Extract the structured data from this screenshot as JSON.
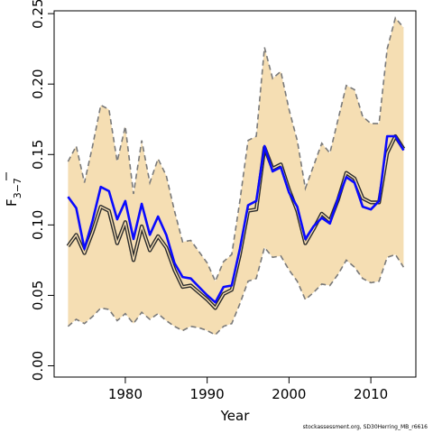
{
  "chart_data": {
    "type": "line",
    "xlabel": "Year",
    "ylabel": "F",
    "ylabel_subscript": "3−7",
    "xlim": [
      1971.3,
      2015.5
    ],
    "ylim": [
      -0.008,
      0.252
    ],
    "x_ticks": [
      1980,
      1990,
      2000,
      2010
    ],
    "y_ticks": [
      0.0,
      0.05,
      0.1,
      0.15,
      0.2,
      0.25
    ],
    "y_tick_labels": [
      "0.00",
      "0.05",
      "0.10",
      "0.15",
      "0.20",
      "0.25"
    ],
    "grid": false,
    "legend": "none",
    "x": [
      1973,
      1974,
      1975,
      1976,
      1977,
      1978,
      1979,
      1980,
      1981,
      1982,
      1983,
      1984,
      1985,
      1986,
      1987,
      1988,
      1989,
      1990,
      1991,
      1992,
      1993,
      1994,
      1995,
      1996,
      1997,
      1998,
      1999,
      2000,
      2001,
      2002,
      2003,
      2004,
      2005,
      2006,
      2007,
      2008,
      2009,
      2010,
      2011,
      2012,
      2013,
      2014
    ],
    "series": [
      {
        "role": "median",
        "color": "#2b2b2b",
        "values": [
          0.085,
          0.093,
          0.08,
          0.095,
          0.113,
          0.11,
          0.087,
          0.102,
          0.075,
          0.099,
          0.082,
          0.092,
          0.084,
          0.068,
          0.056,
          0.057,
          0.052,
          0.047,
          0.041,
          0.051,
          0.054,
          0.079,
          0.11,
          0.111,
          0.155,
          0.14,
          0.143,
          0.125,
          0.11,
          0.087,
          0.097,
          0.108,
          0.103,
          0.118,
          0.137,
          0.133,
          0.119,
          0.116,
          0.116,
          0.151,
          0.163,
          0.154
        ]
      },
      {
        "role": "estimate",
        "color": "#0a0aff",
        "values": [
          0.12,
          0.112,
          0.083,
          0.103,
          0.127,
          0.124,
          0.104,
          0.117,
          0.09,
          0.115,
          0.093,
          0.106,
          0.093,
          0.073,
          0.063,
          0.062,
          0.056,
          0.05,
          0.045,
          0.056,
          0.057,
          0.083,
          0.114,
          0.117,
          0.156,
          0.138,
          0.141,
          0.123,
          0.113,
          0.09,
          0.099,
          0.105,
          0.101,
          0.119,
          0.134,
          0.13,
          0.113,
          0.111,
          0.117,
          0.163,
          0.163,
          0.153
        ]
      }
    ],
    "band": {
      "color": "#f5deb3",
      "edge_color": "#7a7a7a",
      "upper": [
        0.145,
        0.156,
        0.13,
        0.156,
        0.185,
        0.182,
        0.145,
        0.17,
        0.122,
        0.16,
        0.13,
        0.147,
        0.135,
        0.11,
        0.088,
        0.089,
        0.081,
        0.073,
        0.06,
        0.074,
        0.079,
        0.117,
        0.16,
        0.163,
        0.226,
        0.204,
        0.209,
        0.182,
        0.16,
        0.126,
        0.142,
        0.158,
        0.151,
        0.175,
        0.199,
        0.196,
        0.177,
        0.172,
        0.172,
        0.225,
        0.247,
        0.24
      ],
      "lower": [
        0.028,
        0.033,
        0.03,
        0.035,
        0.041,
        0.04,
        0.032,
        0.037,
        0.03,
        0.038,
        0.033,
        0.037,
        0.032,
        0.028,
        0.025,
        0.028,
        0.027,
        0.025,
        0.022,
        0.028,
        0.03,
        0.044,
        0.06,
        0.062,
        0.084,
        0.077,
        0.078,
        0.068,
        0.06,
        0.047,
        0.052,
        0.058,
        0.057,
        0.065,
        0.075,
        0.07,
        0.062,
        0.059,
        0.06,
        0.077,
        0.079,
        0.07
      ]
    }
  },
  "footer_text": "stockassessment.org, SD30Herring_MB_r6616"
}
